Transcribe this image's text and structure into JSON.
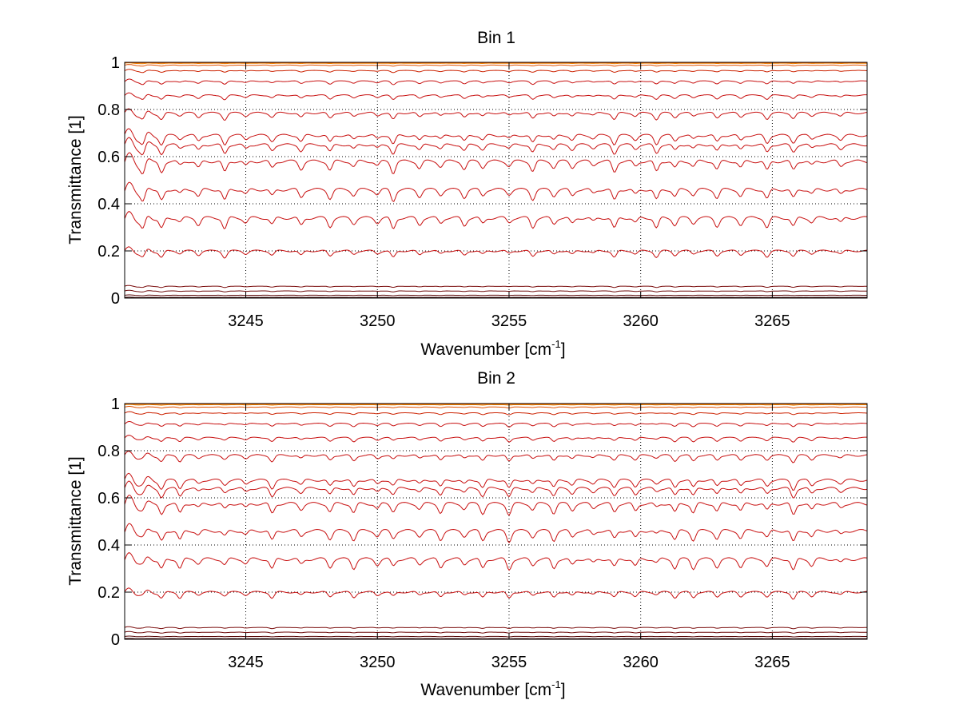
{
  "chart_data": [
    {
      "type": "line",
      "title": "Bin 1",
      "xlabel_main": "Wavenumber [cm",
      "xlabel_sup": "-1",
      "xlabel_end": "]",
      "ylabel": "Transmittance [1]",
      "xlim": [
        3240.4,
        3268.6
      ],
      "ylim": [
        0,
        1
      ],
      "xticks": [
        3245,
        3250,
        3255,
        3260,
        3265
      ],
      "yticks": [
        0,
        0.2,
        0.4,
        0.6,
        0.8,
        1
      ],
      "ytick_labels": [
        "0",
        "0.2",
        "0.4",
        "0.6",
        "0.8",
        "1"
      ],
      "grid": "dotted",
      "legend": "none",
      "absorption_lines": [
        3241.1,
        3241.8,
        3242.5,
        3243.2,
        3244.2,
        3245.0,
        3246.0,
        3247.1,
        3248.2,
        3249.1,
        3250.0,
        3250.6,
        3251.6,
        3252.4,
        3253.3,
        3254.0,
        3255.0,
        3255.9,
        3256.7,
        3257.4,
        3258.2,
        3259.0,
        3259.8,
        3260.6,
        3261.3,
        3262.0,
        3262.9,
        3263.8,
        3264.8,
        3265.8,
        3266.5,
        3267.6
      ],
      "series": [
        {
          "base": 0.003,
          "color": "#3d0505",
          "depth": 0.001
        },
        {
          "base": 0.012,
          "color": "#5a0808",
          "depth": 0.002
        },
        {
          "base": 0.03,
          "color": "#6e0a0a",
          "depth": 0.004
        },
        {
          "base": 0.05,
          "color": "#7a0c0c",
          "depth": 0.005
        },
        {
          "base": 0.2,
          "color": "#c81010",
          "depth": 0.03
        },
        {
          "base": 0.34,
          "color": "#c81010",
          "depth": 0.05
        },
        {
          "base": 0.46,
          "color": "#c81010",
          "depth": 0.05
        },
        {
          "base": 0.58,
          "color": "#c81010",
          "depth": 0.05
        },
        {
          "base": 0.65,
          "color": "#c81010",
          "depth": 0.04
        },
        {
          "base": 0.69,
          "color": "#c81010",
          "depth": 0.04
        },
        {
          "base": 0.785,
          "color": "#c81010",
          "depth": 0.03
        },
        {
          "base": 0.86,
          "color": "#c81010",
          "depth": 0.02
        },
        {
          "base": 0.92,
          "color": "#c81010",
          "depth": 0.015
        },
        {
          "base": 0.965,
          "color": "#cc2200",
          "depth": 0.008
        },
        {
          "base": 0.988,
          "color": "#e05000",
          "depth": 0.004
        },
        {
          "base": 0.996,
          "color": "#ee8800",
          "depth": 0.002
        },
        {
          "base": 0.999,
          "color": "#2255cc",
          "depth": 0.001
        },
        {
          "base": 0.998,
          "color": "#ff6600",
          "depth": 0.001
        }
      ]
    },
    {
      "type": "line",
      "title": "Bin 2",
      "xlabel_main": "Wavenumber [cm",
      "xlabel_sup": "-1",
      "xlabel_end": "]",
      "ylabel": "Transmittance [1]",
      "xlim": [
        3240.4,
        3268.6
      ],
      "ylim": [
        0,
        1
      ],
      "xticks": [
        3245,
        3250,
        3255,
        3260,
        3265
      ],
      "yticks": [
        0,
        0.2,
        0.4,
        0.6,
        0.8,
        1
      ],
      "ytick_labels": [
        "0",
        "0.2",
        "0.4",
        "0.6",
        "0.8",
        "1"
      ],
      "grid": "dotted",
      "legend": "none",
      "absorption_lines": [
        3241.1,
        3241.8,
        3242.5,
        3243.2,
        3244.2,
        3245.0,
        3246.0,
        3247.1,
        3248.2,
        3249.1,
        3250.0,
        3250.6,
        3251.6,
        3252.4,
        3253.3,
        3254.0,
        3255.0,
        3255.9,
        3256.7,
        3257.4,
        3258.2,
        3259.0,
        3259.8,
        3260.6,
        3261.3,
        3262.0,
        3262.9,
        3263.8,
        3264.8,
        3265.8,
        3266.5,
        3267.6
      ],
      "series": [
        {
          "base": 0.003,
          "color": "#3d0505",
          "depth": 0.001
        },
        {
          "base": 0.012,
          "color": "#5a0808",
          "depth": 0.002
        },
        {
          "base": 0.03,
          "color": "#6e0a0a",
          "depth": 0.004
        },
        {
          "base": 0.05,
          "color": "#7a0c0c",
          "depth": 0.005
        },
        {
          "base": 0.2,
          "color": "#c81010",
          "depth": 0.03
        },
        {
          "base": 0.34,
          "color": "#c81010",
          "depth": 0.05
        },
        {
          "base": 0.46,
          "color": "#c81010",
          "depth": 0.05
        },
        {
          "base": 0.575,
          "color": "#c81010",
          "depth": 0.05
        },
        {
          "base": 0.64,
          "color": "#c81010",
          "depth": 0.04
        },
        {
          "base": 0.675,
          "color": "#c81010",
          "depth": 0.04
        },
        {
          "base": 0.78,
          "color": "#c81010",
          "depth": 0.03
        },
        {
          "base": 0.855,
          "color": "#c81010",
          "depth": 0.02
        },
        {
          "base": 0.915,
          "color": "#c81010",
          "depth": 0.015
        },
        {
          "base": 0.96,
          "color": "#cc2200",
          "depth": 0.008
        },
        {
          "base": 0.985,
          "color": "#e05000",
          "depth": 0.004
        },
        {
          "base": 0.995,
          "color": "#ee8800",
          "depth": 0.002
        },
        {
          "base": 0.999,
          "color": "#2255cc",
          "depth": 0.001
        },
        {
          "base": 0.998,
          "color": "#ff6600",
          "depth": 0.001
        }
      ]
    }
  ]
}
